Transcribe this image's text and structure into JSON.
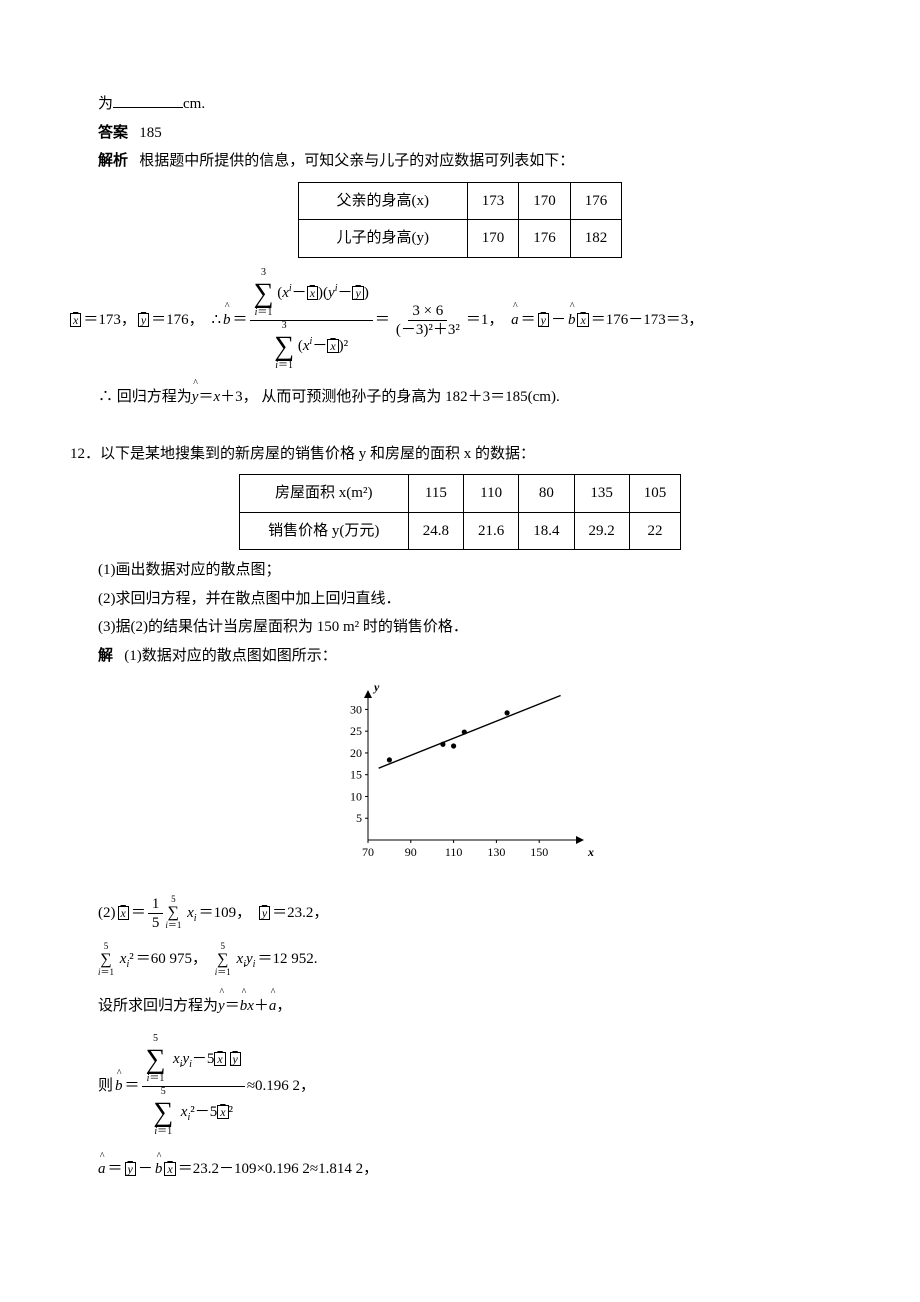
{
  "intro": {
    "line1_prefix": "为",
    "line1_suffix": "cm."
  },
  "answer": {
    "label": "答案",
    "value": "185"
  },
  "analysis": {
    "label": "解析",
    "lead": "根据题中所提供的信息，可知父亲与儿子的对应数据可列表如下："
  },
  "table1": {
    "row1": [
      "父亲的身高(x)",
      "173",
      "170",
      "176"
    ],
    "row2": [
      "儿子的身高(y)",
      "170",
      "176",
      "182"
    ]
  },
  "calc1": {
    "xbar": "x",
    "xbar_v": "＝173，",
    "ybar": "y",
    "ybar_v": "＝176，",
    "therefore": "∴",
    "bhat": "b",
    "eq1_num_sum_upper": "3",
    "eq1_num_sum_lower": "i＝1",
    "eq1_num_body": "(x<i>i</i>－x)(y<i>i</i>－y)",
    "eq1_den_sum_upper": "3",
    "eq1_den_sum_lower": "i＝1",
    "eq1_den_body": "(x<i>i</i>－x)²",
    "mid_eq": "＝",
    "rhs_num": "3 × 6",
    "rhs_den": "(－3)²＋3²",
    "result1": "＝1，",
    "ahat": "a",
    "ahat_eq": "＝",
    "ybar2": "y",
    "minus": "－",
    "bhat2": "b",
    "xbar2": "x",
    "result2": "＝176－173＝3，"
  },
  "conclusion1": {
    "therefore": "∴",
    "text1": "回归方程为",
    "yhat": "y",
    "eq": "＝",
    "x": "x",
    "plus3": "＋3，",
    "text2": "从而可预测他孙子的身高为 182＋3＝185(cm)."
  },
  "q12": {
    "num": "12．",
    "stem": "以下是某地搜集到的新房屋的销售价格 y 和房屋的面积 x 的数据："
  },
  "table2": {
    "row1": [
      "房屋面积 x(m²)",
      "115",
      "110",
      "80",
      "135",
      "105"
    ],
    "row2": [
      "销售价格 y(万元)",
      "24.8",
      "21.6",
      "18.4",
      "29.2",
      "22"
    ]
  },
  "subs": {
    "s1": "(1)画出数据对应的散点图；",
    "s2": "(2)求回归方程，并在散点图中加上回归直线．",
    "s3": "(3)据(2)的结果估计当房屋面积为 150 m² 时的销售价格．"
  },
  "sol": {
    "label": "解",
    "p1": "(1)数据对应的散点图如图所示："
  },
  "scatter": {
    "x_axis_label": "x",
    "y_axis_label": "y",
    "x_ticks": [
      70,
      90,
      110,
      130,
      150
    ],
    "y_ticks": [
      5,
      10,
      15,
      20,
      25,
      30
    ],
    "points": [
      {
        "x": 80,
        "y": 18.4
      },
      {
        "x": 105,
        "y": 22
      },
      {
        "x": 110,
        "y": 21.6
      },
      {
        "x": 115,
        "y": 24.8
      },
      {
        "x": 135,
        "y": 29.2
      }
    ],
    "line": {
      "x1": 75,
      "y1": 16.5,
      "x2": 160,
      "y2": 33.2
    },
    "xlim": [
      70,
      170
    ],
    "ylim": [
      0,
      34
    ],
    "colors": {
      "axis": "#000",
      "point": "#000",
      "line": "#000",
      "bg": "#ffffff"
    }
  },
  "part2": {
    "lead": "(2)",
    "xbar": "x",
    "eq1": "＝",
    "frac_num": "1",
    "frac_den": "5",
    "sum_upper": "5",
    "sum_lower": "i＝1",
    "sum_body": "x<sub>i</sub>",
    "v1": "＝109，",
    "ybar": "y",
    "v2": "＝23.2，",
    "line2_s1_up": "5",
    "line2_s1_low": "i＝1",
    "line2_s1_body": "x<sub>i</sub>²",
    "line2_v1": "＝60 975，",
    "line2_s2_up": "5",
    "line2_s2_low": "i＝1",
    "line2_s2_body": "x<sub>i</sub>y<sub>i</sub>",
    "line2_v2": "＝12 952.",
    "line3_pre": "设所求回归方程为",
    "yhat": "y",
    "eq": "＝",
    "bhat": "b",
    "x": "x",
    "plus": "＋",
    "ahat": "a",
    "comma": "，",
    "line4_pre": "则",
    "bhat2": "b",
    "eq2": "＝",
    "l4_num_up": "5",
    "l4_num_low": "i＝1",
    "l4_num_body": "x<sub>i</sub>y<sub>i</sub>－5",
    "l4_num_tail": "x y",
    "l4_den_up": "5",
    "l4_den_low": "i＝1",
    "l4_den_body": "x<sub>i</sub>²－5",
    "l4_den_tail": "x²",
    "l4_res": "≈0.196 2，",
    "line5_a": "a",
    "line5_eq": "＝",
    "line5_y": "y",
    "line5_minus": "－",
    "line5_b": "b",
    "line5_x": "x",
    "line5_rest": "＝23.2－109×0.196 2≈1.814 2，"
  }
}
